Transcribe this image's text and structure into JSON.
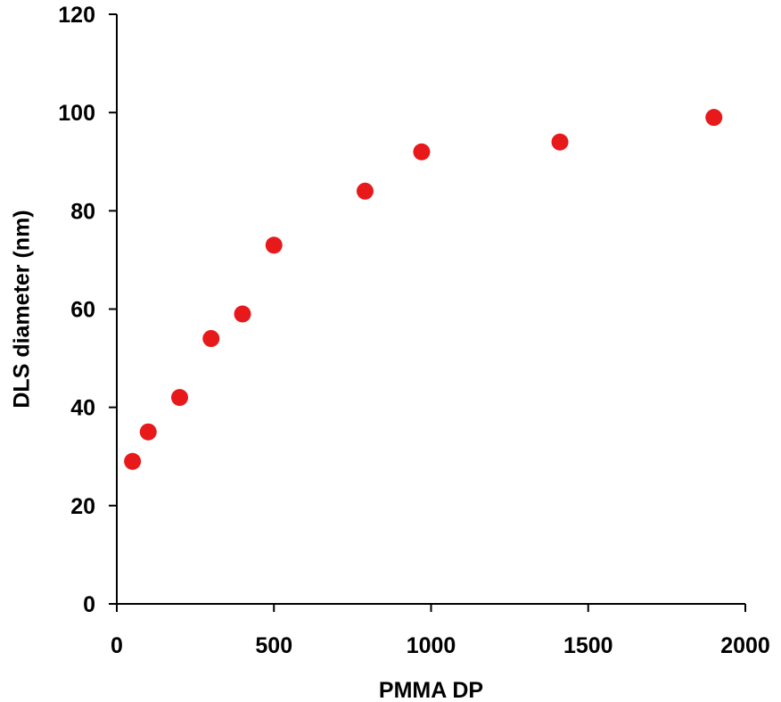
{
  "chart_data": {
    "type": "scatter",
    "title": "",
    "xlabel": "PMMA DP",
    "ylabel": "DLS diameter (nm)",
    "xlim": [
      0,
      2000
    ],
    "ylim": [
      0,
      120
    ],
    "xticks": [
      0,
      500,
      1000,
      1500,
      2000
    ],
    "yticks": [
      0,
      20,
      40,
      60,
      80,
      100,
      120
    ],
    "grid": false,
    "legend": "none",
    "marker_color": "#e8191b",
    "series": [
      {
        "x": [
          50,
          100,
          200,
          300,
          400,
          500,
          790,
          970,
          1410,
          1900
        ],
        "y": [
          29,
          35,
          42,
          54,
          59,
          73,
          84,
          92,
          94,
          99
        ]
      }
    ]
  }
}
